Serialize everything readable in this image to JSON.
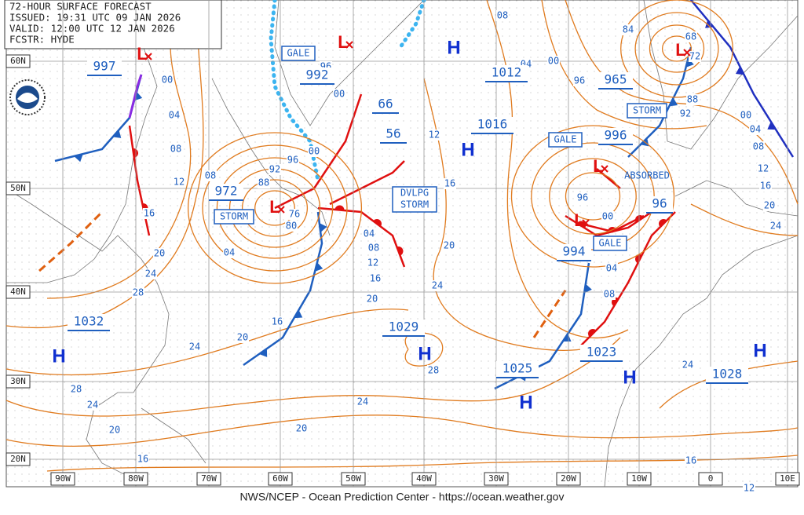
{
  "header": {
    "lines": [
      "72-HOUR SURFACE FORECAST",
      "ISSUED: 19:31 UTC 09 JAN 2026",
      "VALID:  12:00 UTC 12 JAN 2026",
      "FCSTR:  HYDE"
    ]
  },
  "latitude_labels": [
    "60N",
    "50N",
    "40N",
    "30N",
    "20N"
  ],
  "longitude_labels": [
    "90W",
    "80W",
    "70W",
    "60W",
    "50W",
    "40W",
    "30W",
    "20W",
    "10W",
    "0",
    "10E"
  ],
  "pressure_centers": [
    "997",
    "992",
    "1012",
    "965",
    "66",
    "56",
    "1016",
    "996",
    "972",
    "96",
    "994",
    "1029",
    "1023",
    "1025",
    "1032",
    "1028"
  ],
  "warnings": [
    "GALE",
    "STORM",
    "GALE",
    "STORM",
    "GALE"
  ],
  "developing_storm": [
    "DVLPG",
    "STORM"
  ],
  "absorbed": "ABSORBED",
  "highs": [
    "H",
    "H",
    "H",
    "H",
    "H",
    "H",
    "H"
  ],
  "lows": [
    "L",
    "L",
    "L",
    "L",
    "L",
    "L"
  ],
  "isobar_labels": [
    "08",
    "04",
    "00",
    "96",
    "84",
    "68",
    "72",
    "88",
    "92",
    "00",
    "04",
    "08",
    "12",
    "16",
    "20",
    "24",
    "00",
    "04",
    "08",
    "12",
    "16",
    "20",
    "24",
    "28",
    "08",
    "92",
    "96",
    "00",
    "88",
    "76",
    "80",
    "04",
    "96",
    "00",
    "12",
    "16",
    "20",
    "24",
    "04",
    "08",
    "12",
    "16",
    "20",
    "16",
    "20",
    "24",
    "28",
    "24",
    "20",
    "16",
    "20",
    "24",
    "28",
    "96",
    "00",
    "04",
    "08",
    "24",
    "16",
    "12"
  ],
  "footer": "NWS/NCEP - Ocean Prediction Center - https://ocean.weather.gov"
}
